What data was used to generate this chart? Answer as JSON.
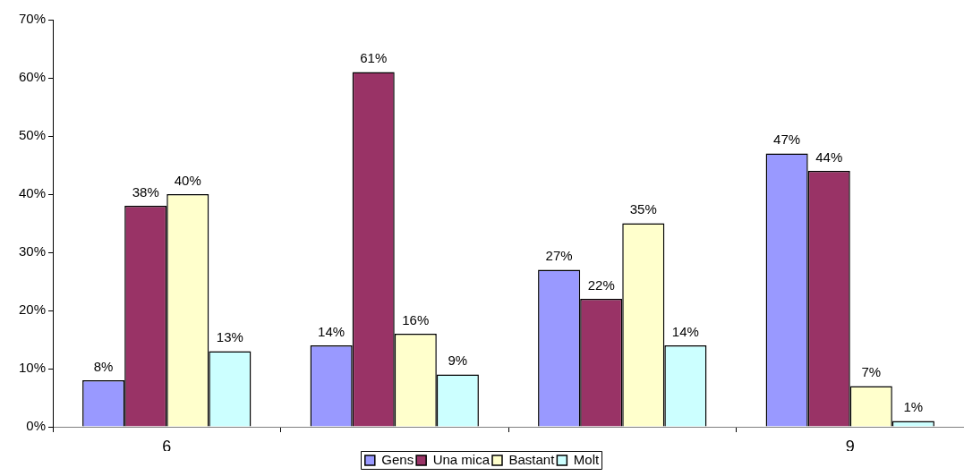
{
  "chart_data": {
    "type": "bar",
    "categories": [
      "6",
      null,
      null,
      "9"
    ],
    "series": [
      {
        "name": "Gens",
        "color": "#9999ff",
        "values": [
          8,
          14,
          27,
          47
        ],
        "value_labels": [
          "8%",
          "14%",
          "27%",
          "47%"
        ]
      },
      {
        "name": "Una mica",
        "color": "#993366",
        "values": [
          38,
          61,
          22,
          44
        ],
        "value_labels": [
          "38%",
          "61%",
          "22%",
          "44%"
        ]
      },
      {
        "name": "Bastant",
        "color": "#ffffcc",
        "values": [
          40,
          16,
          35,
          7
        ],
        "value_labels": [
          "40%",
          "16%",
          "35%",
          "7%"
        ]
      },
      {
        "name": "Molt",
        "color": "#ccffff",
        "values": [
          13,
          9,
          14,
          1
        ],
        "value_labels": [
          "13%",
          "9%",
          "14%",
          "1%"
        ]
      }
    ],
    "ylim": [
      0,
      70
    ],
    "yticks": [
      {
        "value": 0,
        "label": "0%"
      },
      {
        "value": 10,
        "label": "10%"
      },
      {
        "value": 20,
        "label": "20%"
      },
      {
        "value": 30,
        "label": "30%"
      },
      {
        "value": 40,
        "label": "40%"
      },
      {
        "value": 50,
        "label": "50%"
      },
      {
        "value": 60,
        "label": "60%"
      },
      {
        "value": 70,
        "label": "70%"
      }
    ],
    "legend": "bottom"
  }
}
